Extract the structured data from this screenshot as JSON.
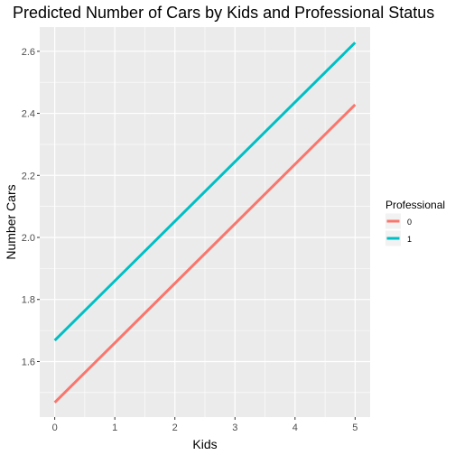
{
  "chart_data": {
    "type": "line",
    "title": "Predicted Number of Cars by Kids and Professional Status",
    "xlabel": "Kids",
    "ylabel": "Number Cars",
    "xlim": [
      -0.25,
      5.25
    ],
    "ylim": [
      1.421,
      2.678
    ],
    "x_ticks": [
      0,
      1,
      2,
      3,
      4,
      5
    ],
    "x_tick_labels": [
      "0",
      "1",
      "2",
      "3",
      "4",
      "5"
    ],
    "y_ticks": [
      1.6,
      1.8,
      2.0,
      2.2,
      2.4,
      2.6
    ],
    "y_tick_labels": [
      "1.6",
      "1.8",
      "2.0",
      "2.2",
      "2.4",
      "2.6"
    ],
    "x": [
      0,
      5
    ],
    "series": [
      {
        "name": "0",
        "values": [
          1.468,
          2.428
        ],
        "color": "#f8766d"
      },
      {
        "name": "1",
        "values": [
          1.668,
          2.628
        ],
        "color": "#00bfc4"
      }
    ],
    "legend": {
      "title": "Professional",
      "position": "right"
    },
    "grid": true,
    "panel_background": "#ebebeb",
    "grid_color": "#ffffff"
  }
}
